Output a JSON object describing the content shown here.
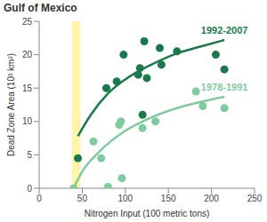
{
  "chart_data": {
    "type": "scatter",
    "title": "Gulf of Mexico",
    "x_label": "Nitrogen Input (100 metric tons)",
    "y_label": "Dead Zone Area (10³ km²)",
    "xlim": [
      0,
      250
    ],
    "xticks": [
      0,
      50,
      100,
      150,
      200,
      250
    ],
    "ylim": [
      0,
      25
    ],
    "yticks": [
      0,
      5,
      10,
      15,
      20,
      25
    ],
    "grid": false,
    "highlight_x": [
      38,
      48
    ],
    "highlight_color": "#fff4a8",
    "series": [
      {
        "name": "1992-2007",
        "color": "#1b7a4b",
        "marker": "circle",
        "x": [
          45,
          78,
          90,
          98,
          115,
          117,
          120,
          122,
          125,
          140,
          142,
          160,
          205,
          215
        ],
        "values": [
          4.5,
          15,
          16,
          20,
          17,
          18,
          11,
          22,
          16.5,
          21,
          18.5,
          20.5,
          20,
          17.8
        ],
        "fit_x": [
          45,
          60,
          80,
          100,
          130,
          160,
          190,
          215
        ],
        "fit_values": [
          7.8,
          11,
          14.2,
          16.3,
          18.5,
          20.2,
          21.3,
          22.2
        ]
      },
      {
        "name": "1978-1991",
        "color": "#7fcba0",
        "marker": "circle",
        "x": [
          40,
          63,
          72,
          80,
          93,
          95,
          96,
          120,
          135,
          182,
          190,
          215
        ],
        "values": [
          0,
          7,
          4.5,
          0.2,
          9.5,
          10,
          1.5,
          9,
          10,
          14.5,
          12.3,
          12
        ],
        "fit_x": [
          40,
          50,
          70,
          100,
          130,
          160,
          190,
          215
        ],
        "fit_values": [
          0,
          2.5,
          5.5,
          8.6,
          10.6,
          12,
          13,
          13.7
        ]
      }
    ]
  }
}
